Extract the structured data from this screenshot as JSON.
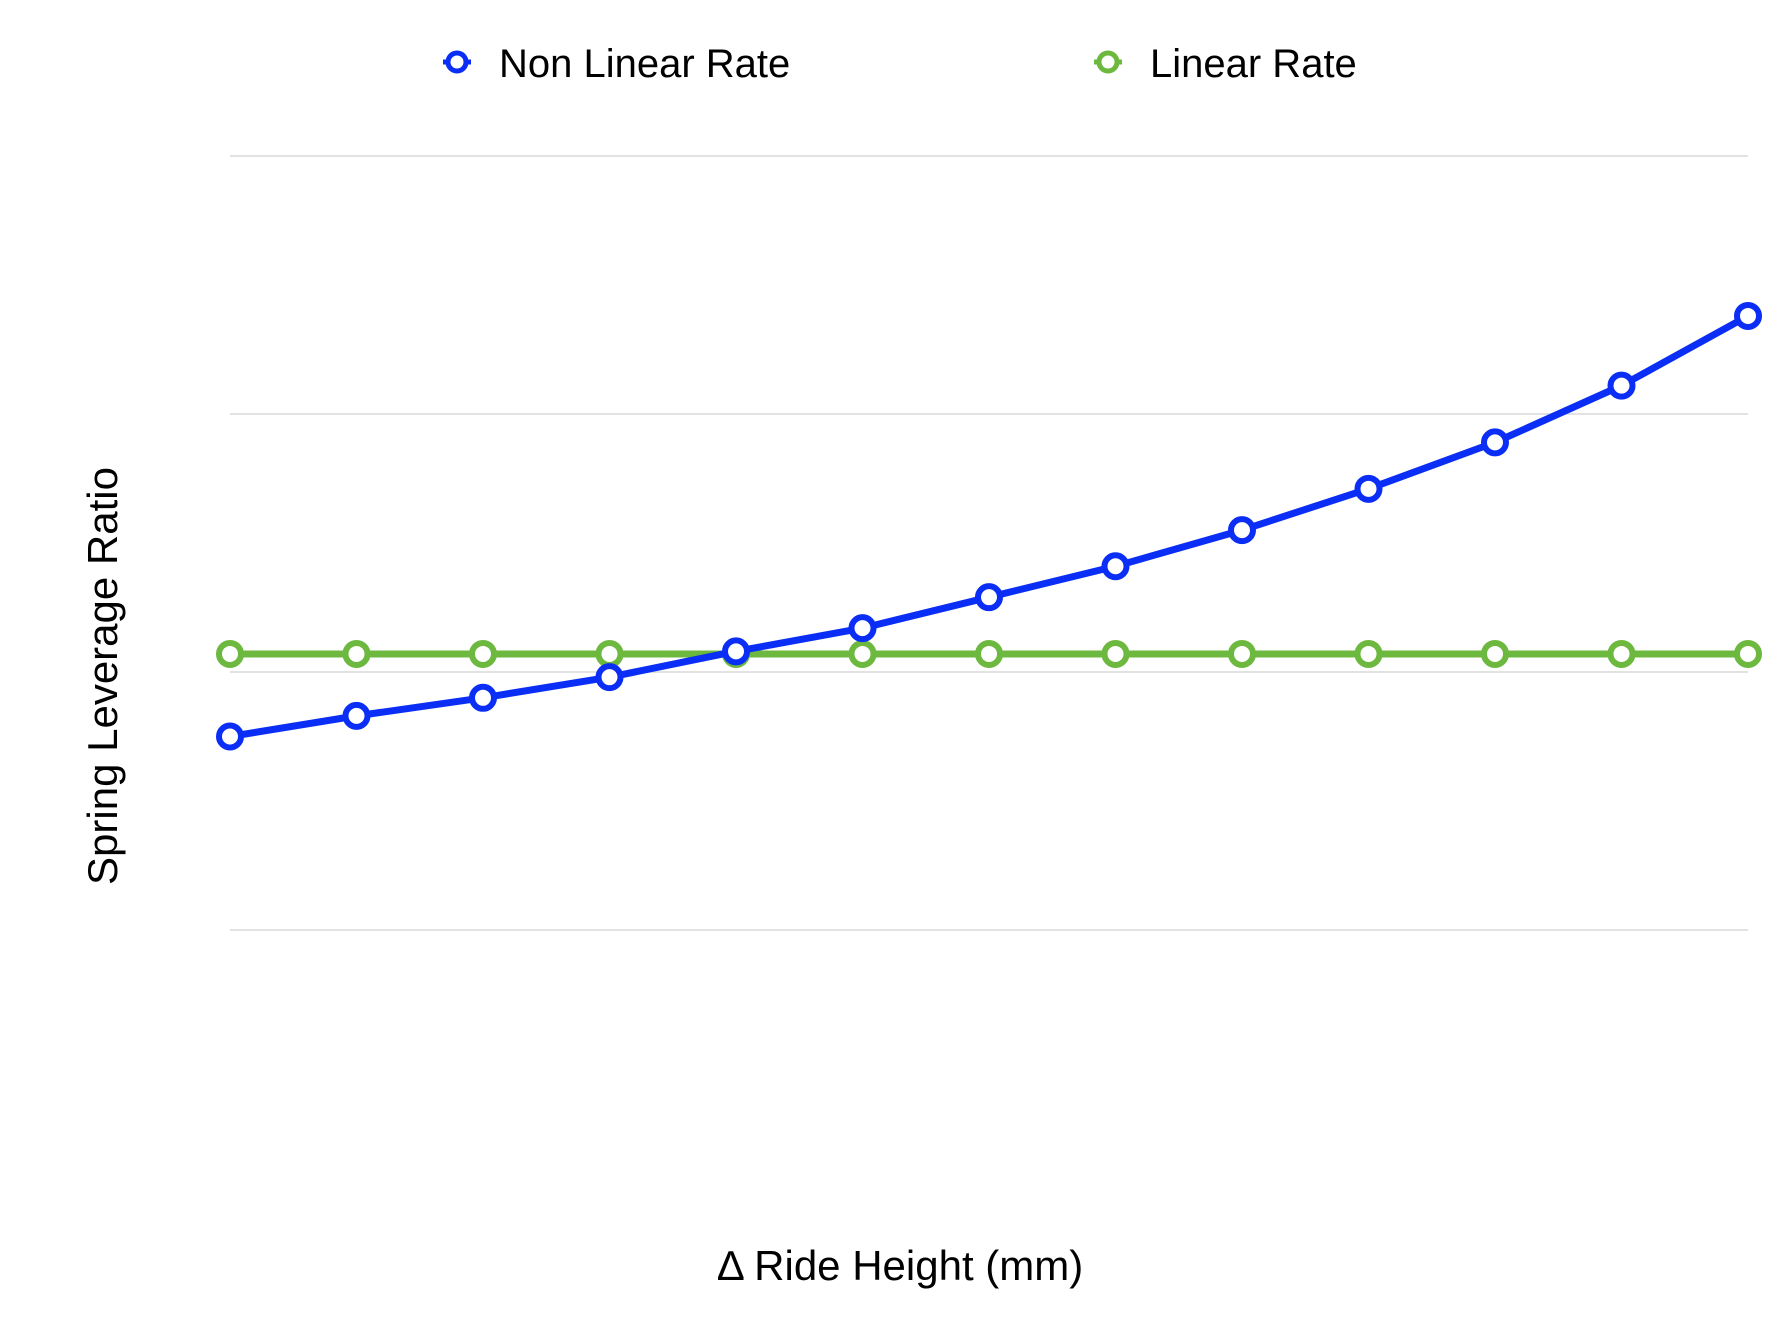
{
  "chart_data": {
    "type": "line",
    "title": "",
    "xlabel": "Δ Ride Height (mm)",
    "ylabel": "Spring Leverage Ratio",
    "x": [
      0,
      1,
      2,
      3,
      4,
      5,
      6,
      7,
      8,
      9,
      10,
      11,
      12
    ],
    "xlim": [
      0,
      12
    ],
    "ylim": [
      0,
      4
    ],
    "gridlines": [
      0,
      1,
      2,
      3
    ],
    "grid": true,
    "tick_labels_visible": false,
    "legend_position": "top-center",
    "series": [
      {
        "name": "Non Linear Rate",
        "color": "#0A2EF5",
        "values": [
          1.75,
          1.83,
          1.9,
          1.98,
          2.08,
          2.17,
          2.29,
          2.41,
          2.55,
          2.71,
          2.89,
          3.11,
          3.38
        ]
      },
      {
        "name": "Linear Rate",
        "color": "#6DB83F",
        "values": [
          2.07,
          2.07,
          2.07,
          2.07,
          2.07,
          2.07,
          2.07,
          2.07,
          2.07,
          2.07,
          2.07,
          2.07,
          2.07
        ]
      }
    ]
  }
}
